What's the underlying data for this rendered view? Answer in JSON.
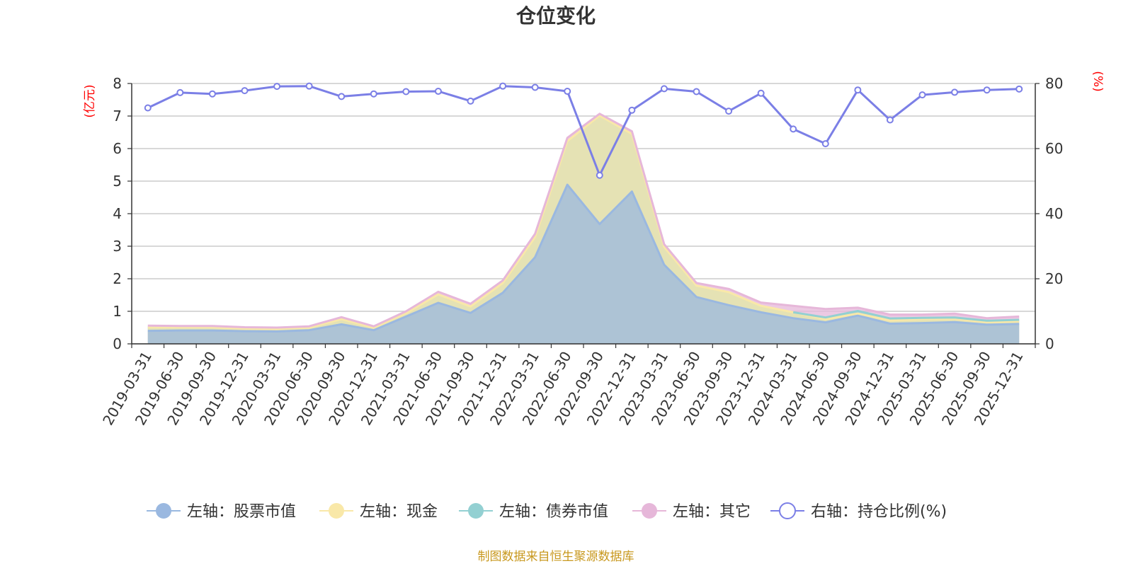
{
  "chart_data": {
    "type": "area",
    "title": "仓位变化",
    "source": "制图数据来自恒生聚源数据库",
    "categories": [
      "2019-03-31",
      "2019-06-30",
      "2019-09-30",
      "2019-12-31",
      "2020-03-31",
      "2020-06-30",
      "2020-09-30",
      "2020-12-31",
      "2021-03-31",
      "2021-06-30",
      "2021-09-30",
      "2021-12-31",
      "2022-03-31",
      "2022-06-30",
      "2022-09-30",
      "2022-12-31",
      "2023-03-31",
      "2023-06-30",
      "2023-09-30",
      "2023-12-31",
      "2024-03-31",
      "2024-06-30",
      "2024-09-30",
      "2024-12-31",
      "2025-03-31",
      "2025-06-30",
      "2025-09-30",
      "2025-12-31"
    ],
    "y_left": {
      "label": "(亿元)",
      "min": 0,
      "max": 8,
      "ticks": [
        "0",
        "1",
        "2",
        "3",
        "4",
        "5",
        "6",
        "7",
        "8"
      ]
    },
    "y_right": {
      "label": "(%)",
      "min": 0,
      "max": 80,
      "ticks": [
        "0",
        "20",
        "40",
        "60",
        "80"
      ]
    },
    "series": [
      {
        "name": "左轴：股票市值",
        "axis": "left",
        "color": "#9ab8e0",
        "values": [
          0.4,
          0.41,
          0.41,
          0.39,
          0.38,
          0.42,
          0.6,
          0.42,
          0.84,
          1.26,
          0.95,
          1.57,
          2.66,
          4.89,
          3.68,
          4.68,
          2.43,
          1.44,
          1.19,
          0.97,
          0.79,
          0.66,
          0.87,
          0.62,
          0.64,
          0.67,
          0.59,
          0.61
        ]
      },
      {
        "name": "左轴：现金",
        "axis": "left",
        "color": "#f9e8a8",
        "values": [
          0.12,
          0.1,
          0.1,
          0.08,
          0.08,
          0.08,
          0.16,
          0.08,
          0.1,
          0.26,
          0.2,
          0.3,
          0.62,
          1.34,
          3.33,
          1.77,
          0.55,
          0.35,
          0.4,
          0.2,
          0.18,
          0.1,
          0.06,
          0.1,
          0.12,
          0.1,
          0.08,
          0.08
        ]
      },
      {
        "name": "左轴：债券市值",
        "axis": "left",
        "color": "#93d0d2",
        "values": [
          0,
          0,
          0,
          0,
          0,
          0,
          0,
          0,
          0,
          0,
          0,
          0,
          0,
          0,
          0,
          0,
          0,
          0,
          0,
          0,
          0,
          0.05,
          0.08,
          0.06,
          0.04,
          0.04,
          0.04,
          0.05
        ]
      },
      {
        "name": "左轴：其它",
        "axis": "left",
        "color": "#e6b7d9",
        "values": [
          0.04,
          0.04,
          0.04,
          0.04,
          0.04,
          0.04,
          0.06,
          0.04,
          0.06,
          0.08,
          0.08,
          0.08,
          0.1,
          0.1,
          0.06,
          0.08,
          0.08,
          0.08,
          0.1,
          0.1,
          0.2,
          0.26,
          0.1,
          0.12,
          0.1,
          0.12,
          0.08,
          0.1
        ]
      },
      {
        "name": "右轴：持仓比例(%)",
        "axis": "right",
        "color": "#7b7fe6",
        "values": [
          72.5,
          77.2,
          76.8,
          77.8,
          79.1,
          79.2,
          76.0,
          76.8,
          77.5,
          77.6,
          74.6,
          79.2,
          78.8,
          77.6,
          51.8,
          71.8,
          78.4,
          77.5,
          71.5,
          77.0,
          66.0,
          61.5,
          78.0,
          68.8,
          76.5,
          77.3,
          78.0,
          78.3
        ]
      }
    ]
  }
}
